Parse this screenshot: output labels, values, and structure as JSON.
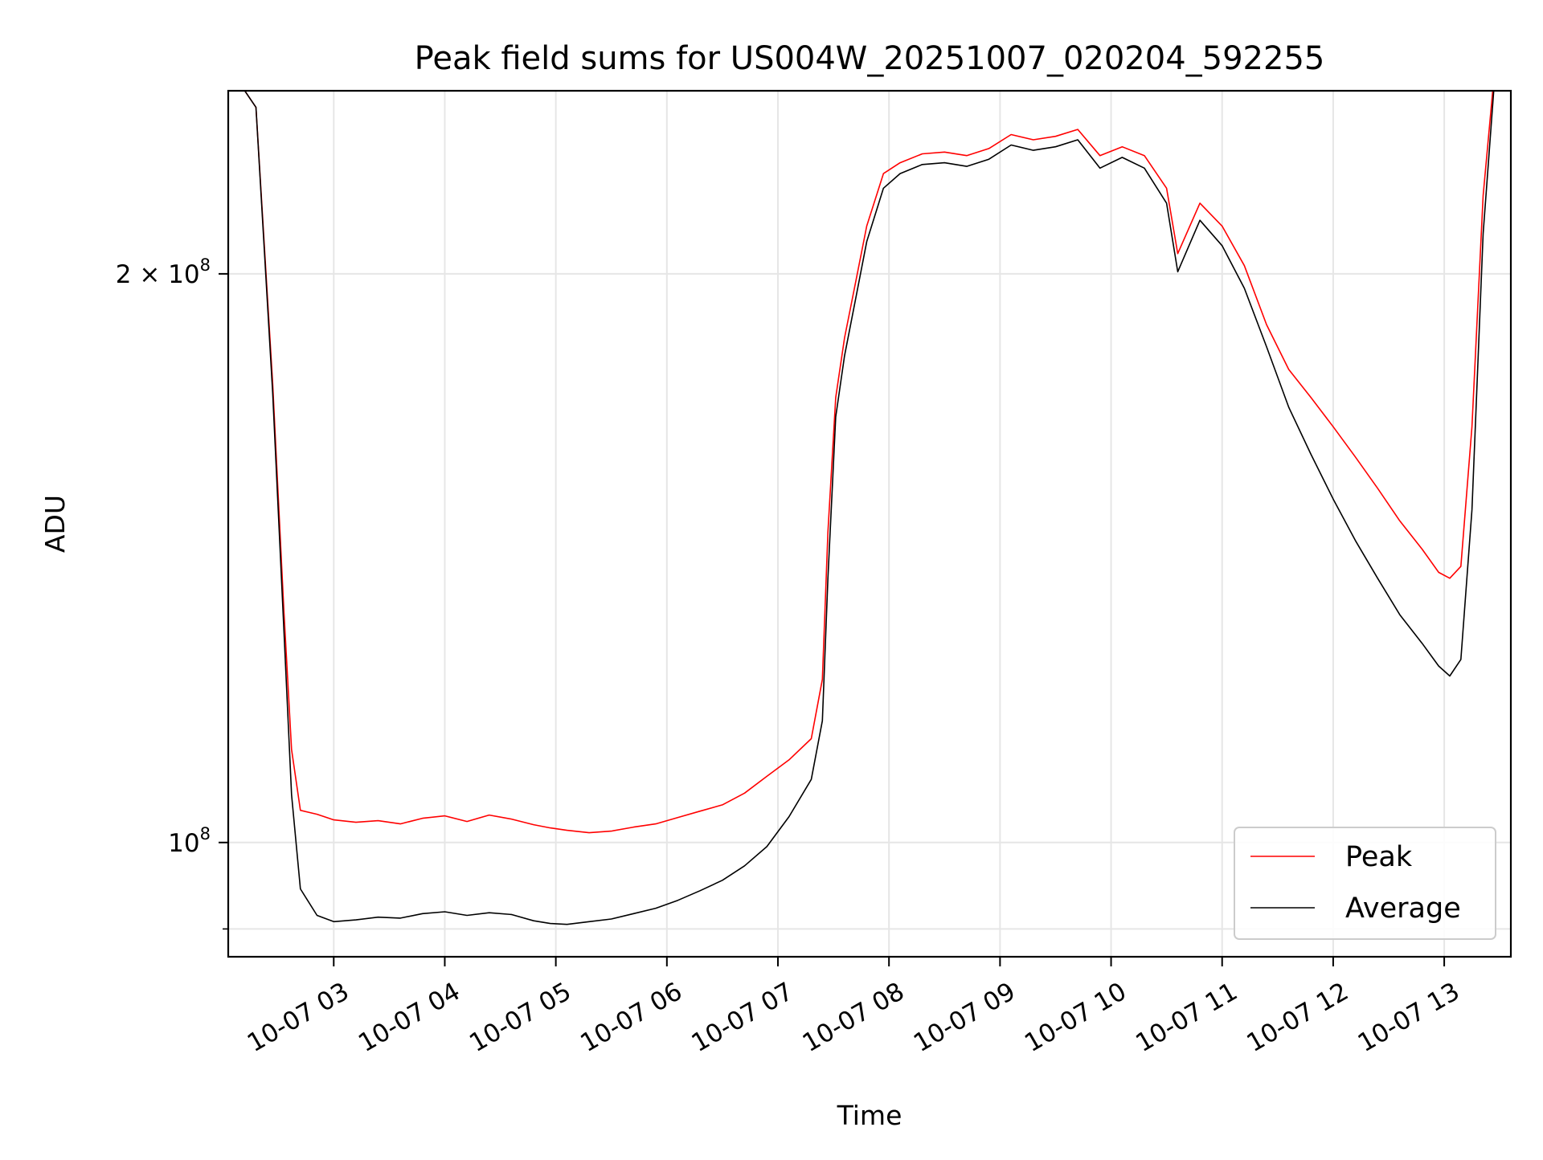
{
  "chart_data": {
    "type": "line",
    "title": "Peak field sums for US004W_20251007_020204_592255",
    "xlabel": "Time",
    "ylabel": "ADU",
    "yscale": "log",
    "ylim": [
      87000000,
      250000000
    ],
    "xlim_hours": [
      2.05,
      13.6
    ],
    "grid": true,
    "legend_position": "lower right",
    "x_ticks": [
      {
        "hour": 3,
        "label": "10-07 03"
      },
      {
        "hour": 4,
        "label": "10-07 04"
      },
      {
        "hour": 5,
        "label": "10-07 05"
      },
      {
        "hour": 6,
        "label": "10-07 06"
      },
      {
        "hour": 7,
        "label": "10-07 07"
      },
      {
        "hour": 8,
        "label": "10-07 08"
      },
      {
        "hour": 9,
        "label": "10-07 09"
      },
      {
        "hour": 10,
        "label": "10-07 10"
      },
      {
        "hour": 11,
        "label": "10-07 11"
      },
      {
        "hour": 12,
        "label": "10-07 12"
      },
      {
        "hour": 13,
        "label": "10-07 13"
      }
    ],
    "y_ticks": [
      {
        "value": 100000000,
        "base": "10",
        "exponent": "8",
        "prefix": ""
      },
      {
        "value": 200000000,
        "base": "10",
        "exponent": "8",
        "prefix": "2 × "
      }
    ],
    "series": [
      {
        "name": "Peak",
        "color": "#ff0000",
        "x": [
          2.1,
          2.3,
          2.45,
          2.55,
          2.62,
          2.7,
          2.85,
          3.0,
          3.2,
          3.4,
          3.6,
          3.8,
          4.0,
          4.2,
          4.4,
          4.6,
          4.8,
          4.95,
          5.1,
          5.3,
          5.5,
          5.7,
          5.9,
          6.1,
          6.3,
          6.5,
          6.7,
          6.9,
          7.1,
          7.3,
          7.4,
          7.45,
          7.52,
          7.6,
          7.7,
          7.8,
          7.95,
          8.1,
          8.3,
          8.5,
          8.7,
          8.9,
          9.1,
          9.3,
          9.5,
          9.7,
          9.9,
          10.1,
          10.3,
          10.5,
          10.6,
          10.8,
          11.0,
          11.2,
          11.4,
          11.6,
          11.8,
          12.0,
          12.2,
          12.4,
          12.6,
          12.8,
          12.95,
          13.05,
          13.15,
          13.25,
          13.35,
          13.45,
          13.55
        ],
        "values": [
          255000000,
          245000000,
          175000000,
          133000000,
          112000000,
          104000000,
          103500000,
          102800000,
          102500000,
          102700000,
          102300000,
          103000000,
          103300000,
          102600000,
          103400000,
          102900000,
          102200000,
          101800000,
          101500000,
          101200000,
          101400000,
          101900000,
          102300000,
          103100000,
          103900000,
          104700000,
          106200000,
          108400000,
          110600000,
          113500000,
          122000000,
          146000000,
          172000000,
          185000000,
          198000000,
          212000000,
          226000000,
          229000000,
          231500000,
          232000000,
          231000000,
          233000000,
          237000000,
          235500000,
          236500000,
          238500000,
          231000000,
          233500000,
          231000000,
          222000000,
          205000000,
          218000000,
          212000000,
          202000000,
          188000000,
          178000000,
          172000000,
          166000000,
          160000000,
          154000000,
          148000000,
          143000000,
          139000000,
          138000000,
          140000000,
          166000000,
          220000000,
          255000000,
          262000000
        ]
      },
      {
        "name": "Average",
        "color": "#000000",
        "x": [
          2.1,
          2.3,
          2.45,
          2.55,
          2.62,
          2.7,
          2.85,
          3.0,
          3.2,
          3.4,
          3.6,
          3.8,
          4.0,
          4.2,
          4.4,
          4.6,
          4.8,
          4.95,
          5.1,
          5.3,
          5.5,
          5.7,
          5.9,
          6.1,
          6.3,
          6.5,
          6.7,
          6.9,
          7.1,
          7.3,
          7.4,
          7.45,
          7.52,
          7.6,
          7.7,
          7.8,
          7.95,
          8.1,
          8.3,
          8.5,
          8.7,
          8.9,
          9.1,
          9.3,
          9.5,
          9.7,
          9.9,
          10.1,
          10.3,
          10.5,
          10.6,
          10.8,
          11.0,
          11.2,
          11.4,
          11.6,
          11.8,
          12.0,
          12.2,
          12.4,
          12.6,
          12.8,
          12.95,
          13.05,
          13.15,
          13.25,
          13.35,
          13.45,
          13.55
        ],
        "values": [
          255000000,
          245000000,
          173000000,
          130000000,
          106000000,
          94500000,
          91500000,
          90800000,
          91000000,
          91300000,
          91200000,
          91700000,
          91900000,
          91500000,
          91800000,
          91600000,
          90900000,
          90600000,
          90500000,
          90800000,
          91100000,
          91700000,
          92300000,
          93200000,
          94300000,
          95500000,
          97200000,
          99500000,
          103200000,
          108000000,
          116000000,
          138000000,
          168000000,
          181000000,
          194000000,
          208000000,
          222000000,
          226000000,
          228500000,
          229000000,
          228000000,
          230000000,
          234000000,
          232500000,
          233500000,
          235500000,
          227500000,
          230500000,
          227500000,
          218000000,
          200500000,
          213500000,
          207000000,
          196500000,
          183000000,
          170000000,
          160500000,
          152000000,
          144500000,
          138000000,
          132000000,
          127500000,
          124000000,
          122500000,
          125000000,
          150000000,
          210000000,
          252000000,
          260000000
        ]
      }
    ]
  }
}
